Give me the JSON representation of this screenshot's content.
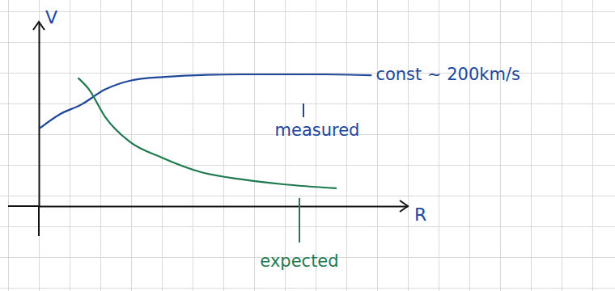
{
  "chart_data": {
    "type": "line",
    "x_label": "R",
    "y_label": "V",
    "series": [
      {
        "name": "measured",
        "color": "#21479a",
        "x": [
          0.05,
          0.7,
          1.37,
          2.16,
          2.95,
          4,
          6.6,
          9.3,
          10.8
        ],
        "values": [
          2.55,
          3.0,
          3.3,
          3.8,
          4.08,
          4.2,
          4.29,
          4.29,
          4.26
        ]
      },
      {
        "name": "expected",
        "color": "#1f7a4f",
        "x": [
          1.29,
          1.63,
          2.16,
          2.95,
          4,
          5.3,
          6.6,
          7.95,
          9.66
        ],
        "values": [
          4.16,
          3.8,
          2.9,
          2.1,
          1.58,
          1.1,
          0.87,
          0.71,
          0.58
        ]
      }
    ],
    "annotations": [
      "const ~ 200km/s"
    ],
    "xlim": [
      0,
      12
    ],
    "ylim": [
      0,
      6
    ],
    "tick_labels": false,
    "grid": false
  }
}
